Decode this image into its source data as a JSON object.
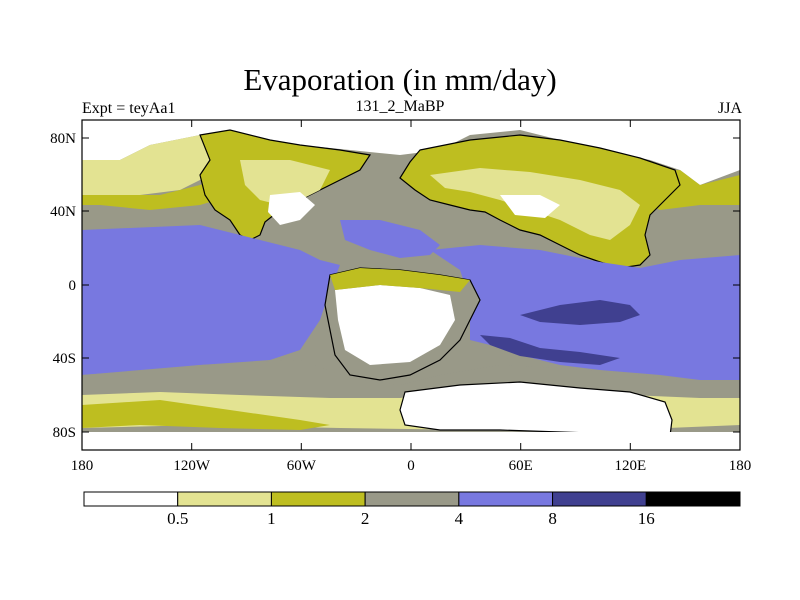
{
  "title": "Evaporation (in mm/day)",
  "subtitle_left": "Expt = teyAa1",
  "subtitle_center": "131_2_MaBP",
  "subtitle_right": "JJA",
  "map": {
    "projection": "cylindrical equidistant",
    "lon_range": [
      -180,
      180
    ],
    "lat_range": [
      -90,
      90
    ],
    "x_ticks": [
      "180",
      "120W",
      "60W",
      "0",
      "60E",
      "120E",
      "180"
    ],
    "x_tick_values": [
      -180,
      -120,
      -60,
      0,
      60,
      120,
      180
    ],
    "y_ticks": [
      "80N",
      "40N",
      "0",
      "40S",
      "80S"
    ],
    "y_tick_values": [
      80,
      40,
      0,
      -40,
      -80
    ]
  },
  "colorbar": {
    "labels": [
      "0.5",
      "1",
      "2",
      "4",
      "8",
      "16"
    ],
    "levels": [
      0.5,
      1,
      2,
      4,
      8,
      16
    ],
    "colors": [
      "#ffffff",
      "#e3e392",
      "#bebe20",
      "#999988",
      "#7878e0",
      "#404090",
      "#000000"
    ]
  }
}
